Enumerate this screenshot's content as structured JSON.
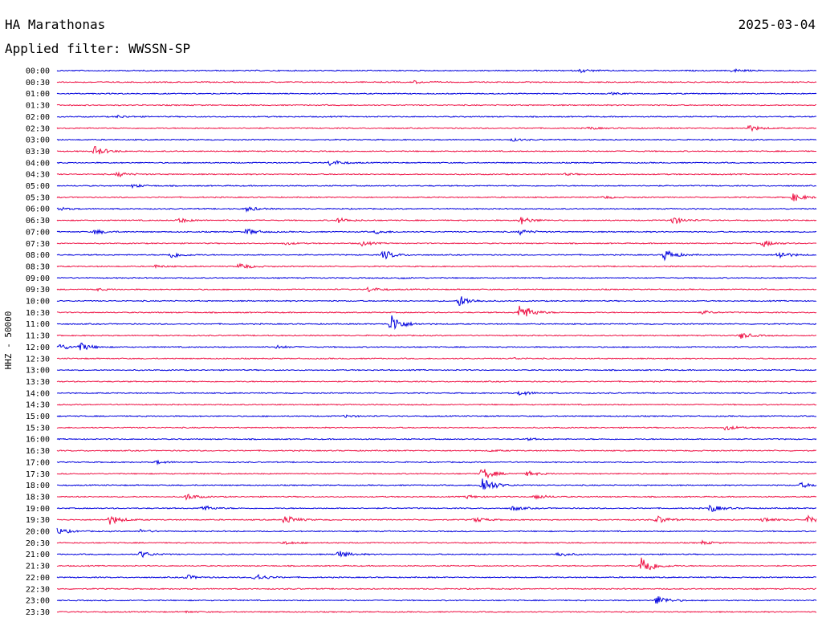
{
  "header": {
    "station": "HA Marathonas",
    "date": "2025-03-04",
    "filter": "Applied filter: WWSSN-SP"
  },
  "chart_data": {
    "type": "line",
    "ylabel": "HHZ - 50000",
    "colors": {
      "even_trace": "#0000dd",
      "odd_trace": "#ee1144"
    },
    "rows": [
      {
        "label": "00:00",
        "events": [
          [
            0.69,
            2
          ],
          [
            0.89,
            2
          ]
        ]
      },
      {
        "label": "00:30",
        "events": [
          [
            0.47,
            1.5
          ]
        ]
      },
      {
        "label": "01:00",
        "events": [
          [
            0.73,
            1
          ]
        ]
      },
      {
        "label": "01:30",
        "events": []
      },
      {
        "label": "02:00",
        "events": [
          [
            0.08,
            1.5
          ]
        ]
      },
      {
        "label": "02:30",
        "events": [
          [
            0.91,
            4
          ],
          [
            0.7,
            1.5
          ]
        ]
      },
      {
        "label": "03:00",
        "events": [
          [
            0.6,
            1.5
          ]
        ]
      },
      {
        "label": "03:30",
        "events": [
          [
            0.05,
            6
          ]
        ]
      },
      {
        "label": "04:00",
        "events": [
          [
            0.36,
            4
          ]
        ]
      },
      {
        "label": "04:30",
        "events": [
          [
            0.08,
            3
          ],
          [
            0.67,
            1
          ]
        ]
      },
      {
        "label": "05:00",
        "events": [
          [
            0.1,
            2
          ]
        ]
      },
      {
        "label": "05:30",
        "events": [
          [
            0.97,
            5
          ],
          [
            0.72,
            1.5
          ]
        ]
      },
      {
        "label": "06:00",
        "events": [
          [
            0.0,
            2
          ],
          [
            0.25,
            3
          ]
        ]
      },
      {
        "label": "06:30",
        "events": [
          [
            0.16,
            3
          ],
          [
            0.37,
            3
          ],
          [
            0.61,
            5
          ],
          [
            0.81,
            5
          ]
        ]
      },
      {
        "label": "07:00",
        "events": [
          [
            0.05,
            3
          ],
          [
            0.25,
            4
          ],
          [
            0.42,
            2
          ],
          [
            0.61,
            3
          ]
        ]
      },
      {
        "label": "07:30",
        "events": [
          [
            0.4,
            3
          ],
          [
            0.93,
            4
          ],
          [
            0.3,
            1.5
          ]
        ]
      },
      {
        "label": "08:00",
        "events": [
          [
            0.15,
            4
          ],
          [
            0.43,
            6
          ],
          [
            0.8,
            7
          ],
          [
            0.95,
            5
          ]
        ]
      },
      {
        "label": "08:30",
        "events": [
          [
            0.24,
            4
          ],
          [
            0.13,
            1.5
          ]
        ]
      },
      {
        "label": "09:00",
        "events": [
          [
            0.45,
            1
          ]
        ]
      },
      {
        "label": "09:30",
        "events": [
          [
            0.41,
            3
          ],
          [
            0.05,
            1.5
          ]
        ]
      },
      {
        "label": "10:00",
        "events": [
          [
            0.53,
            7
          ]
        ]
      },
      {
        "label": "10:30",
        "events": [
          [
            0.61,
            12
          ],
          [
            0.85,
            2
          ]
        ]
      },
      {
        "label": "11:00",
        "events": [
          [
            0.44,
            12
          ]
        ]
      },
      {
        "label": "11:30",
        "events": [
          [
            0.9,
            4
          ]
        ]
      },
      {
        "label": "12:00",
        "events": [
          [
            0.0,
            5
          ],
          [
            0.03,
            5
          ],
          [
            0.29,
            2
          ]
        ]
      },
      {
        "label": "12:30",
        "events": [
          [
            0.6,
            1
          ]
        ]
      },
      {
        "label": "13:00",
        "events": []
      },
      {
        "label": "13:30",
        "events": []
      },
      {
        "label": "14:00",
        "events": [
          [
            0.61,
            3
          ]
        ]
      },
      {
        "label": "14:30",
        "events": []
      },
      {
        "label": "15:00",
        "events": [
          [
            0.38,
            1.5
          ]
        ]
      },
      {
        "label": "15:30",
        "events": [
          [
            0.88,
            3
          ]
        ]
      },
      {
        "label": "16:00",
        "events": [
          [
            0.62,
            1
          ]
        ]
      },
      {
        "label": "16:30",
        "events": [
          [
            0.57,
            1
          ]
        ]
      },
      {
        "label": "17:00",
        "events": [
          [
            0.13,
            2
          ]
        ]
      },
      {
        "label": "17:30",
        "events": [
          [
            0.56,
            8
          ],
          [
            0.62,
            3
          ]
        ]
      },
      {
        "label": "18:00",
        "events": [
          [
            0.56,
            12
          ],
          [
            0.98,
            3
          ]
        ]
      },
      {
        "label": "18:30",
        "events": [
          [
            0.17,
            4
          ],
          [
            0.54,
            2
          ],
          [
            0.63,
            3
          ]
        ]
      },
      {
        "label": "19:00",
        "events": [
          [
            0.19,
            4
          ],
          [
            0.6,
            3
          ],
          [
            0.86,
            5
          ]
        ]
      },
      {
        "label": "19:30",
        "events": [
          [
            0.07,
            6
          ],
          [
            0.3,
            6
          ],
          [
            0.55,
            3
          ],
          [
            0.79,
            5
          ],
          [
            0.93,
            3
          ],
          [
            0.99,
            6
          ]
        ]
      },
      {
        "label": "20:00",
        "events": [
          [
            0.0,
            4
          ],
          [
            0.11,
            2
          ]
        ]
      },
      {
        "label": "20:30",
        "events": [
          [
            0.3,
            2
          ],
          [
            0.85,
            2
          ]
        ]
      },
      {
        "label": "21:00",
        "events": [
          [
            0.11,
            4
          ],
          [
            0.37,
            5
          ],
          [
            0.66,
            3
          ]
        ]
      },
      {
        "label": "21:30",
        "events": [
          [
            0.77,
            14
          ]
        ]
      },
      {
        "label": "22:00",
        "events": [
          [
            0.17,
            3
          ],
          [
            0.26,
            5
          ]
        ]
      },
      {
        "label": "22:30",
        "events": []
      },
      {
        "label": "23:00",
        "events": [
          [
            0.79,
            6
          ]
        ]
      },
      {
        "label": "23:30",
        "events": [
          [
            0.17,
            1
          ]
        ]
      }
    ]
  }
}
